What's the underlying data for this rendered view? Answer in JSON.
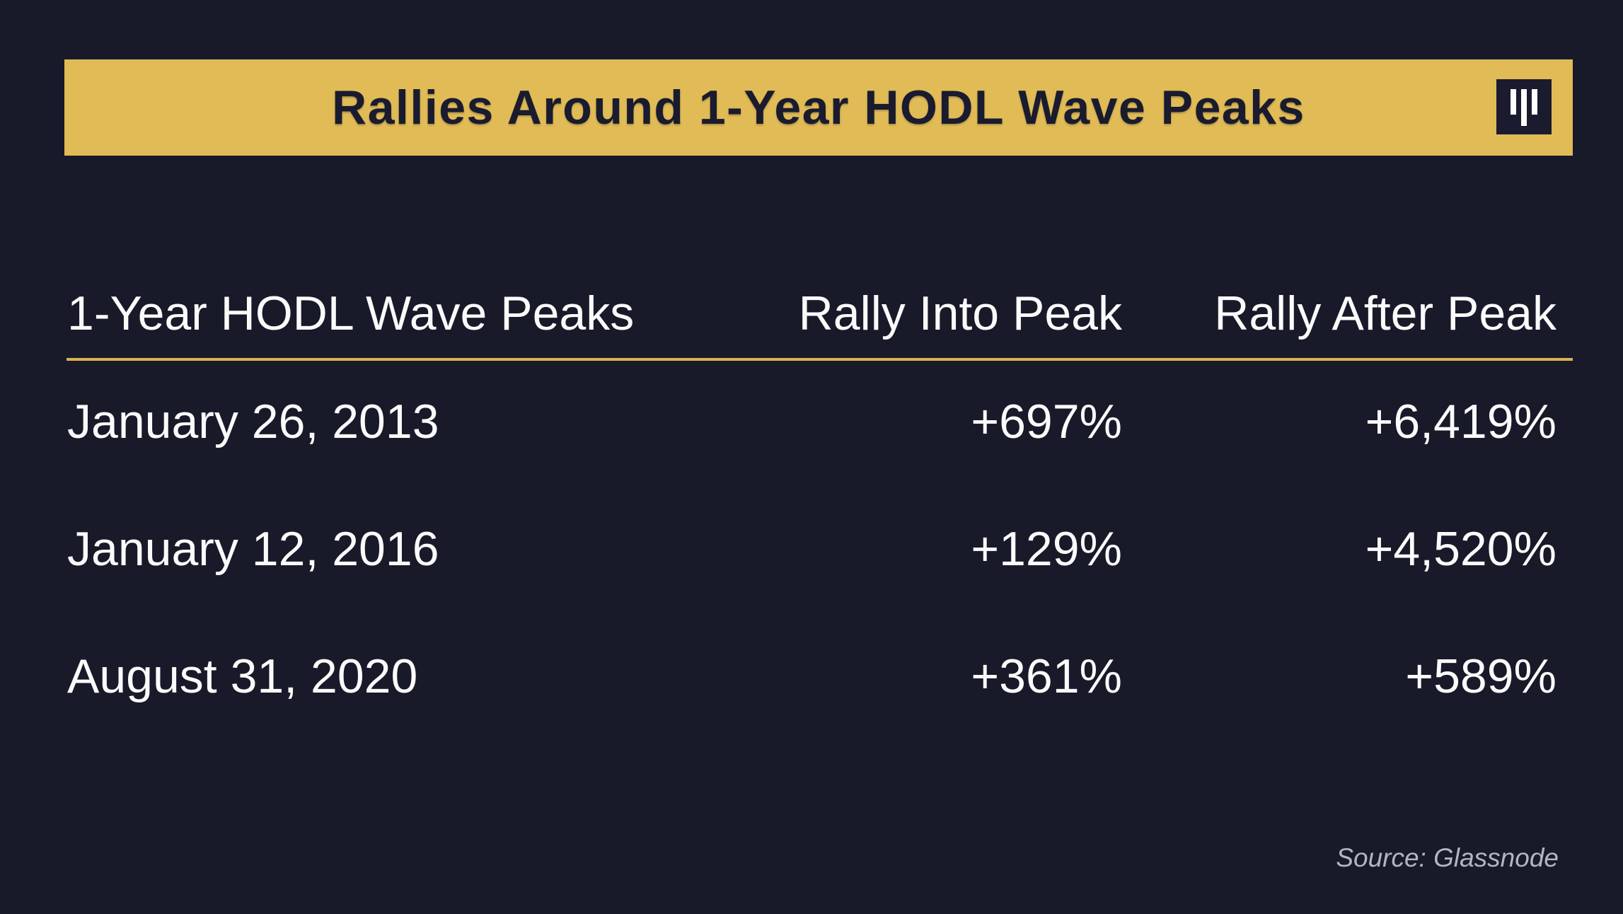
{
  "banner": {
    "title": "Rallies Around 1-Year HODL Wave Peaks"
  },
  "table": {
    "columns": {
      "peak_date": "1-Year HODL Wave Peaks",
      "rally_into": "Rally Into Peak",
      "rally_after": "Rally After Peak"
    },
    "rows": [
      {
        "peak_date": "January 26, 2013",
        "rally_into": "+697%",
        "rally_after": "+6,419%"
      },
      {
        "peak_date": "January 12, 2016",
        "rally_into": "+129%",
        "rally_after": "+4,520%"
      },
      {
        "peak_date": "August 31, 2020",
        "rally_into": "+361%",
        "rally_after": "+589%"
      }
    ]
  },
  "footer": {
    "source": "Source: Glassnode"
  },
  "icons": {
    "logo": "three-vertical-bars-logo"
  },
  "colors": {
    "background": "#181929",
    "banner_gold": "#e0bb56",
    "divider_gold": "#d9b351",
    "title_text": "#1a1b2e",
    "body_text": "#fafafa",
    "muted_text": "#b3b5c1"
  },
  "chart_data": {
    "type": "table",
    "title": "Rallies Around 1-Year HODL Wave Peaks",
    "columns": [
      "1-Year HODL Wave Peaks",
      "Rally Into Peak",
      "Rally After Peak"
    ],
    "rows": [
      [
        "January 26, 2013",
        "+697%",
        "+6,419%"
      ],
      [
        "January 12, 2016",
        "+129%",
        "+4,520%"
      ],
      [
        "August 31, 2020",
        "+361%",
        "+589%"
      ]
    ],
    "series": [
      {
        "name": "Rally Into Peak (%)",
        "values": [
          697,
          129,
          361
        ]
      },
      {
        "name": "Rally After Peak (%)",
        "values": [
          6419,
          4520,
          589
        ]
      }
    ],
    "categories": [
      "January 26, 2013",
      "January 12, 2016",
      "August 31, 2020"
    ],
    "source": "Source: Glassnode",
    "legend_position": "none",
    "grid": false
  }
}
